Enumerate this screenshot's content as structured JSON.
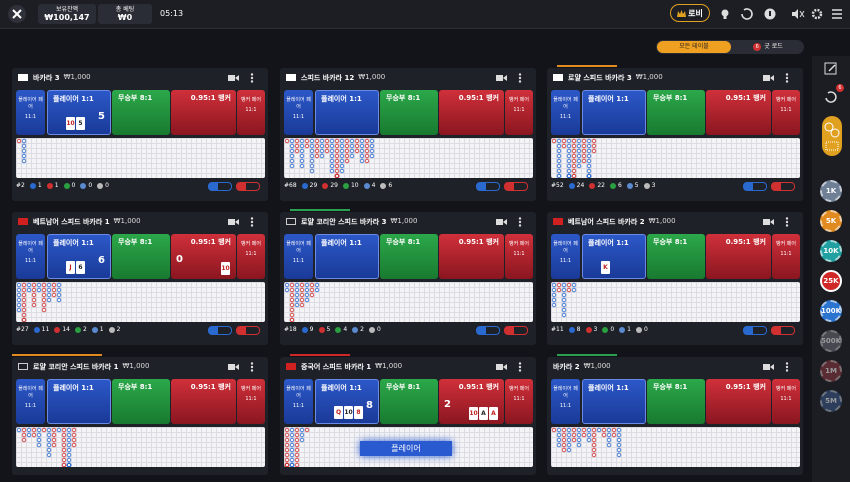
{
  "header": {
    "balance_label": "보유잔액",
    "balance": "₩100,147",
    "bet_label": "총 베팅",
    "bet": "₩0",
    "time": "05:13",
    "lobby": "로비"
  },
  "filters": {
    "all": "모든 테이블",
    "good_road": "굿 로드",
    "good_road_badge": "6"
  },
  "sidebar": {
    "history_badge": "6",
    "chips": [
      "1K",
      "5K",
      "10K",
      "25K",
      "100K",
      "500K",
      "1M",
      "5M"
    ]
  },
  "bet_labels": {
    "player_pair": "플레이어 페어",
    "pair_odds": "11:1",
    "player": "플레이어 1:1",
    "tie": "무승부 8:1",
    "banker": "0.95:1 뱅커",
    "banker_pair": "뱅커 페어"
  },
  "tables": [
    {
      "name": "바카라 3",
      "min_bet": "₩1,000",
      "player_score": "5",
      "player_cards": [
        "10",
        "5"
      ],
      "stats": {
        "round": "#2",
        "counts": [
          1,
          1,
          0,
          0,
          0
        ]
      }
    },
    {
      "name": "스피드 바카라 12",
      "min_bet": "₩1,000",
      "stats": {
        "round": "#68",
        "counts": [
          29,
          29,
          10,
          4,
          6
        ]
      }
    },
    {
      "name": "로얄 스피드 바카라 3",
      "min_bet": "₩1,000",
      "stats": {
        "round": "#52",
        "counts": [
          24,
          22,
          6,
          5,
          3
        ]
      }
    },
    {
      "name": "베트남어 스피드 바카라 1",
      "min_bet": "₩1,000",
      "player_score": "6",
      "player_cards": [
        "J",
        "6"
      ],
      "banker_score": "0",
      "banker_cards": [
        "10"
      ],
      "stats": {
        "round": "#27",
        "counts": [
          11,
          14,
          2,
          1,
          2
        ]
      }
    },
    {
      "name": "로얄 코리안 스피드 바카라 3",
      "min_bet": "₩1,000",
      "stats": {
        "round": "#18",
        "counts": [
          9,
          5,
          4,
          2,
          0
        ]
      }
    },
    {
      "name": "베트남어 스피드 바카라 2",
      "min_bet": "₩1,000",
      "player_cards": [
        "K"
      ],
      "stats": {
        "round": "#11",
        "counts": [
          8,
          3,
          0,
          1,
          0
        ]
      }
    },
    {
      "name": "로얄 코리안 스피드 바카라 1",
      "min_bet": "₩1,000"
    },
    {
      "name": "중국어 스피드 바카라 1",
      "min_bet": "₩1,000",
      "player_score": "8",
      "player_cards": [
        "Q",
        "10",
        "8"
      ],
      "banker_score": "2",
      "banker_cards": [
        "10",
        "A",
        "A"
      ],
      "overlay": "플레이어"
    },
    {
      "name": "바카라 2",
      "min_bet": "₩1,000"
    }
  ]
}
